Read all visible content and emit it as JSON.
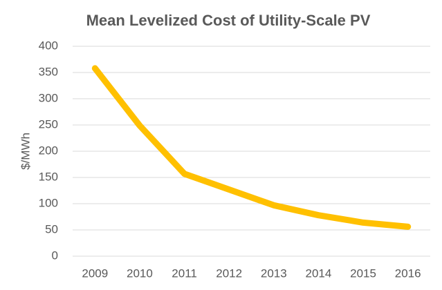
{
  "chart_data": {
    "type": "line",
    "title": "Mean Levelized Cost of Utility-Scale PV",
    "y_label": "$/MWh",
    "categories": [
      "2009",
      "2010",
      "2011",
      "2012",
      "2013",
      "2014",
      "2015",
      "2016"
    ],
    "values": [
      358,
      249,
      157,
      127,
      97,
      78,
      64,
      56
    ],
    "color": "#ffc000",
    "ylim": [
      0,
      400
    ],
    "yticks": [
      0,
      50,
      100,
      150,
      200,
      250,
      300,
      350,
      400
    ],
    "grid": true
  }
}
